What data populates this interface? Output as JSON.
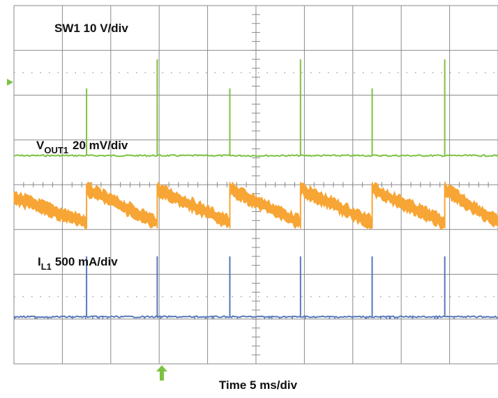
{
  "chart_data": {
    "type": "line",
    "title": "",
    "xlabel": "Time 5 ms/div",
    "grid": true,
    "grid_divisions": {
      "x": 10,
      "y": 8
    },
    "time_per_div_ms": 5,
    "x_range_ms": [
      0,
      50
    ],
    "pulse_times_ms": [
      7.5,
      14.8,
      22.3,
      29.6,
      37.0,
      44.5
    ],
    "series": [
      {
        "name": "SW1",
        "label_main": "SW1 10 V/div",
        "scale": "10 V/div",
        "color": "#7dc242",
        "shape": "pulse",
        "level_div": 3.35,
        "pulse_peak_div": 1.85,
        "pulse_peak_alt_div": 1.2
      },
      {
        "name": "VOUT1",
        "label_main": "V",
        "label_sub": "OUT1",
        "label_scale": "20 mV/div",
        "scale": "20 mV/div",
        "color": "#f7a535",
        "shape": "sawtooth",
        "high_div": 4.1,
        "low_div": 4.85,
        "band_div": 0.25
      },
      {
        "name": "IL1",
        "label_main": "I",
        "label_sub": "L1",
        "label_scale": "500 mA/div",
        "scale": "500 mA/div",
        "color": "#5778ba",
        "shape": "pulse",
        "level_div": 6.95,
        "pulse_peak_div": 5.6,
        "pulse_peak_alt_div": 5.6
      }
    ]
  },
  "markers": {
    "ground_color": "#7dc242",
    "trigger_color": "#7dc242"
  }
}
